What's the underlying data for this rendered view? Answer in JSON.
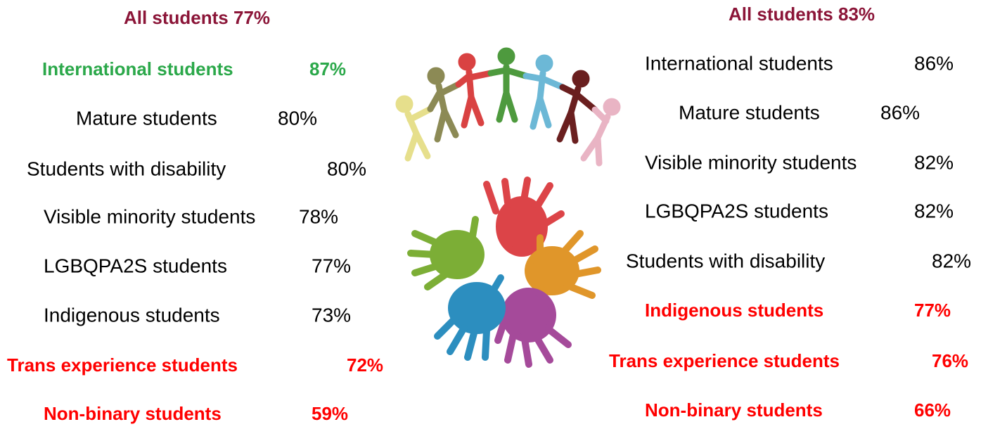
{
  "left": {
    "title": "All students 77%",
    "title_color": "#8b1538",
    "rows": [
      {
        "label": "International students",
        "value": "87%",
        "color": "#2ba84a",
        "bold": true
      },
      {
        "label": "Mature students",
        "value": "80%",
        "color": "#000000",
        "bold": false
      },
      {
        "label": "Students with disability",
        "value": "80%",
        "color": "#000000",
        "bold": false
      },
      {
        "label": "Visible minority students",
        "value": "78%",
        "color": "#000000",
        "bold": false
      },
      {
        "label": "LGBQPA2S students",
        "value": "77%",
        "color": "#000000",
        "bold": false
      },
      {
        "label": "Indigenous students",
        "value": "73%",
        "color": "#000000",
        "bold": false
      },
      {
        "label": "Trans experience students",
        "value": "72%",
        "color": "#ff0000",
        "bold": true
      },
      {
        "label": "Non-binary students",
        "value": "59%",
        "color": "#ff0000",
        "bold": true
      }
    ]
  },
  "right": {
    "title": "All students 83%",
    "title_color": "#8b1538",
    "rows": [
      {
        "label": "International students",
        "value": "86%",
        "color": "#000000",
        "bold": false
      },
      {
        "label": "Mature students",
        "value": "86%",
        "color": "#000000",
        "bold": false
      },
      {
        "label": "Visible minority students",
        "value": "82%",
        "color": "#000000",
        "bold": false
      },
      {
        "label": "LGBQPA2S students",
        "value": "82%",
        "color": "#000000",
        "bold": false
      },
      {
        "label": "Students with disability",
        "value": "82%",
        "color": "#000000",
        "bold": false
      },
      {
        "label": "Indigenous students",
        "value": "77%",
        "color": "#ff0000",
        "bold": true
      },
      {
        "label": "Trans experience students",
        "value": "76%",
        "color": "#ff0000",
        "bold": true
      },
      {
        "label": "Non-binary students",
        "value": "66%",
        "color": "#ff0000",
        "bold": true
      }
    ]
  }
}
